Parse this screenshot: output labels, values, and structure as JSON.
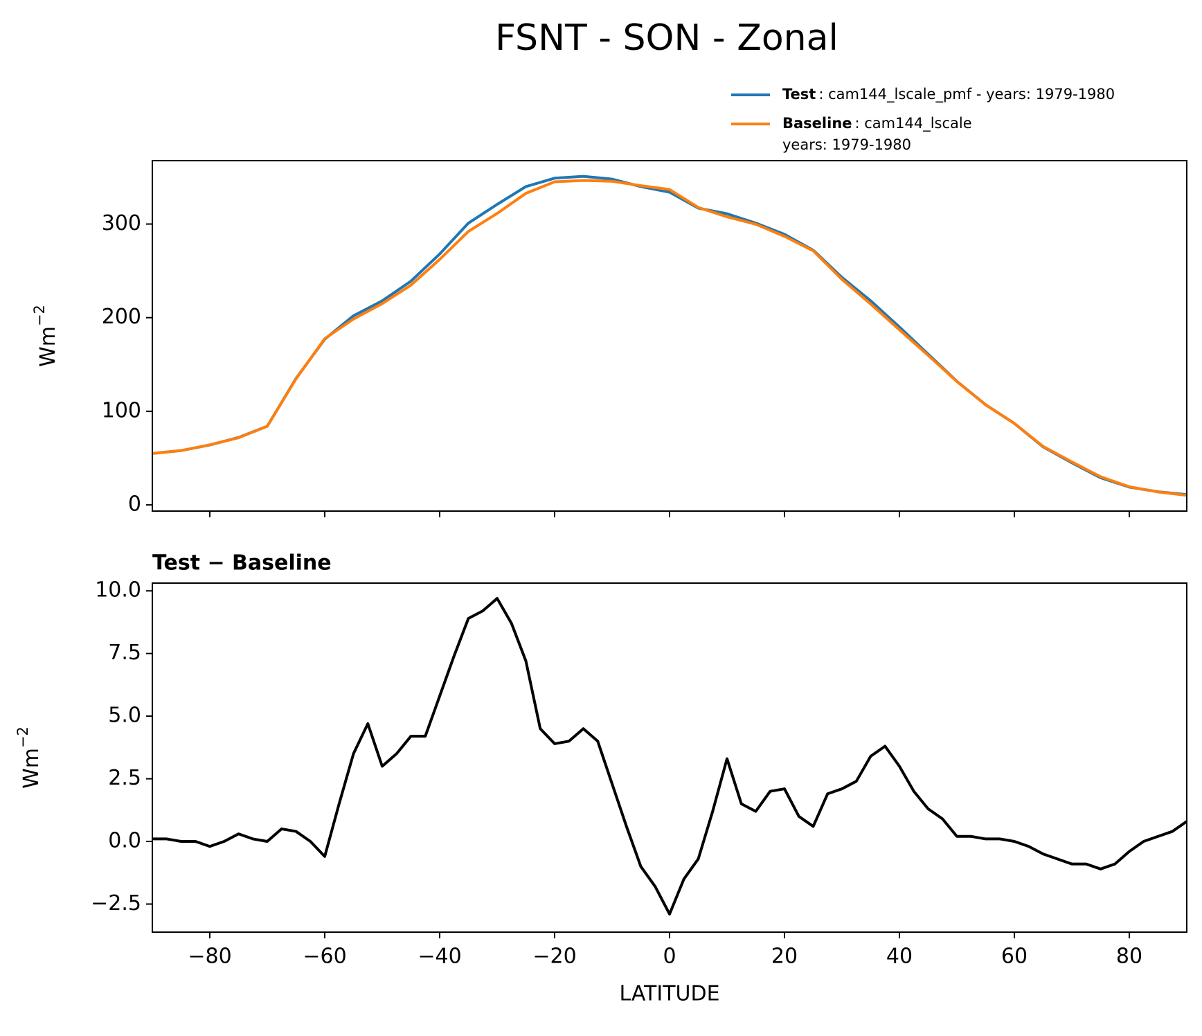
{
  "title": "FSNT - SON - Zonal",
  "chart_data": [
    {
      "type": "line",
      "x": [
        -90,
        -85,
        -80,
        -75,
        -70,
        -65,
        -60,
        -55,
        -50,
        -45,
        -40,
        -35,
        -30,
        -25,
        -20,
        -15,
        -10,
        -5,
        0,
        5,
        10,
        15,
        20,
        25,
        30,
        35,
        40,
        45,
        50,
        55,
        60,
        65,
        70,
        75,
        80,
        85,
        90
      ],
      "series": [
        {
          "name": "Test",
          "description": [
            ": cam144_lscale_pmf - years: 1979-1980"
          ],
          "color": "#1f77b4",
          "values": [
            55,
            58,
            64,
            72,
            84,
            135,
            177,
            202,
            218,
            239,
            268,
            301,
            321,
            340,
            349,
            351,
            348,
            340,
            334,
            317,
            311,
            301,
            289,
            272,
            243,
            218,
            190,
            161,
            132,
            107,
            87,
            62,
            45,
            29,
            19,
            14,
            11
          ]
        },
        {
          "name": "Baseline",
          "description": [
            ": cam144_lscale",
            "years: 1979-1980"
          ],
          "color": "#ff7f0e",
          "values": [
            54.9,
            58,
            64.2,
            71.7,
            84,
            134.6,
            177.6,
            198.5,
            215,
            234.8,
            262.2,
            292.1,
            311.3,
            332.8,
            345.1,
            346.5,
            345.7,
            341,
            336.9,
            317.7,
            307.7,
            299.8,
            286.9,
            271.4,
            240.9,
            214.6,
            187,
            159.7,
            131.8,
            106.9,
            87,
            62.5,
            45.9,
            30.1,
            19.4,
            13.8,
            10.2
          ]
        }
      ],
      "y_label": "Wm",
      "y_label_sup": "−2",
      "xlim": [
        -90,
        90
      ],
      "xticks": [
        -80,
        -60,
        -40,
        -20,
        0,
        20,
        40,
        60,
        80
      ],
      "ylim": [
        -6.6,
        367.7
      ],
      "yticks": [
        0,
        100,
        200,
        300
      ]
    },
    {
      "type": "line",
      "title": "Test − Baseline",
      "x": [
        -90,
        -87.5,
        -85,
        -82.5,
        -80,
        -77.5,
        -75,
        -72.5,
        -70,
        -67.5,
        -65,
        -62.5,
        -60,
        -57.5,
        -55,
        -52.5,
        -50,
        -47.5,
        -45,
        -42.5,
        -40,
        -37.5,
        -35,
        -32.5,
        -30,
        -27.5,
        -25,
        -22.5,
        -20,
        -17.5,
        -15,
        -12.5,
        -10,
        -7.5,
        -5,
        -2.5,
        0,
        2.5,
        5,
        7.5,
        10,
        12.5,
        15,
        17.5,
        20,
        22.5,
        25,
        27.5,
        30,
        32.5,
        35,
        37.5,
        40,
        42.5,
        45,
        47.5,
        50,
        52.5,
        55,
        57.5,
        60,
        62.5,
        65,
        67.5,
        70,
        72.5,
        75,
        77.5,
        80,
        82.5,
        85,
        87.5,
        90
      ],
      "series": [
        {
          "color": "#000000",
          "values": [
            0.1,
            0.1,
            0.0,
            0.0,
            -0.2,
            0.0,
            0.3,
            0.1,
            0.0,
            0.5,
            0.4,
            0.0,
            -0.6,
            1.5,
            3.5,
            4.7,
            3.0,
            3.5,
            4.2,
            4.2,
            5.8,
            7.4,
            8.9,
            9.2,
            9.7,
            8.7,
            7.2,
            4.5,
            3.9,
            4.0,
            4.5,
            4.0,
            2.3,
            0.6,
            -1.0,
            -1.8,
            -2.9,
            -1.5,
            -0.7,
            1.2,
            3.3,
            1.5,
            1.2,
            2.0,
            2.1,
            1.0,
            0.6,
            1.9,
            2.1,
            2.4,
            3.4,
            3.8,
            3.0,
            2.0,
            1.3,
            0.9,
            0.2,
            0.2,
            0.1,
            0.1,
            0.0,
            -0.2,
            -0.5,
            -0.7,
            -0.9,
            -0.9,
            -1.1,
            -0.9,
            -0.4,
            0.0,
            0.2,
            0.4,
            0.8
          ]
        }
      ],
      "x_label": "LATITUDE",
      "y_label": "Wm",
      "y_label_sup": "−2",
      "xlim": [
        -90,
        90
      ],
      "xticks": [
        {
          "value": -80,
          "label": "−80"
        },
        {
          "value": -60,
          "label": "−60"
        },
        {
          "value": -40,
          "label": "−40"
        },
        {
          "value": -20,
          "label": "−20"
        },
        0,
        20,
        40,
        60,
        80
      ],
      "ylim": [
        -3.62,
        10.31
      ],
      "yticks": [
        {
          "value": -2.5,
          "label": "−2.5"
        },
        {
          "value": 0,
          "label": "0.0"
        },
        2.5,
        {
          "value": 5,
          "label": "5.0"
        },
        7.5,
        {
          "value": 10,
          "label": "10.0"
        }
      ]
    }
  ]
}
